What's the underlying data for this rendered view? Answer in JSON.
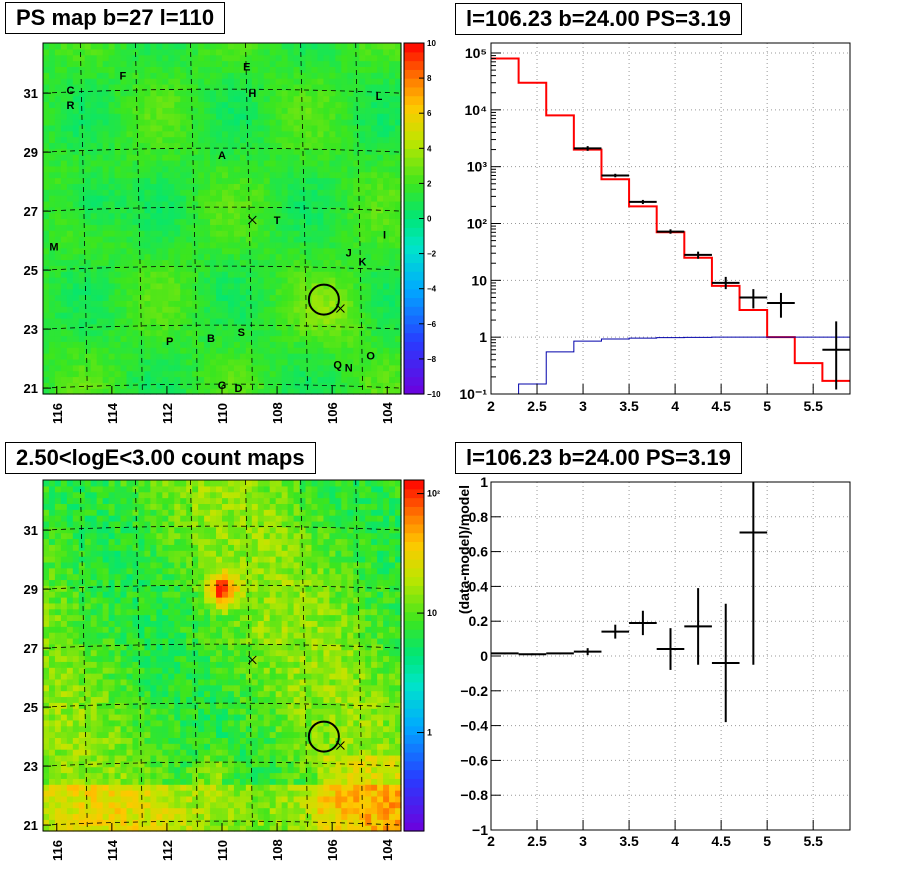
{
  "panels": {
    "ps_map": {
      "title": "PS map b=27 l=110",
      "x_ticks": [
        "116",
        "114",
        "112",
        "110",
        "108",
        "106",
        "104"
      ],
      "y_ticks": [
        "31",
        "29",
        "27",
        "25",
        "23",
        "21"
      ],
      "colorbar_ticks": [
        "10",
        "8",
        "6",
        "4",
        "2",
        "0",
        "−2",
        "−4",
        "−6",
        "−8",
        "−10"
      ],
      "source_labels": [
        "E",
        "F",
        "C",
        "H",
        "L",
        "R",
        "A",
        "T",
        "I",
        "M",
        "J",
        "K",
        "P",
        "B",
        "S",
        "O",
        "Q",
        "N",
        "G",
        "D"
      ]
    },
    "spectrum": {
      "title": "l=106.23 b=24.00 PS=3.19",
      "x_ticks": [
        "2",
        "2.5",
        "3",
        "3.5",
        "4",
        "4.5",
        "5",
        "5.5"
      ],
      "y_ticks": [
        "10⁵",
        "10⁴",
        "10³",
        "10²",
        "10",
        "1",
        "10⁻¹"
      ]
    },
    "count_map": {
      "title": "2.50<logE<3.00 count maps",
      "x_ticks": [
        "116",
        "114",
        "112",
        "110",
        "108",
        "106",
        "104"
      ],
      "y_ticks": [
        "31",
        "29",
        "27",
        "25",
        "23",
        "21"
      ],
      "colorbar_ticks": [
        "10²",
        "10",
        "1"
      ]
    },
    "residual": {
      "title": "l=106.23 b=24.00 PS=3.19",
      "ylabel": "(data-model)/model",
      "x_ticks": [
        "2",
        "2.5",
        "3",
        "3.5",
        "4",
        "4.5",
        "5",
        "5.5"
      ],
      "y_ticks": [
        "1",
        "0.8",
        "0.6",
        "0.4",
        "0.2",
        "0",
        "−0.2",
        "−0.4",
        "−0.6",
        "−0.8",
        "−1"
      ]
    }
  },
  "chart_data": [
    {
      "type": "heatmap",
      "title": "PS map b=27 l=110",
      "x_range": [
        116.5,
        103.5
      ],
      "y_range": [
        20.8,
        32.7
      ],
      "z_range": [
        -10,
        10
      ],
      "colorbar": "rainbow",
      "sources": [
        {
          "label": "E",
          "l": 109.1,
          "b": 31.9
        },
        {
          "label": "F",
          "l": 113.6,
          "b": 31.6
        },
        {
          "label": "C",
          "l": 115.5,
          "b": 31.1
        },
        {
          "label": "H",
          "l": 108.9,
          "b": 31.0
        },
        {
          "label": "L",
          "l": 104.3,
          "b": 30.9
        },
        {
          "label": "R",
          "l": 115.5,
          "b": 30.6
        },
        {
          "label": "A",
          "l": 110.0,
          "b": 28.9
        },
        {
          "label": "T",
          "l": 108.0,
          "b": 26.7
        },
        {
          "label": "I",
          "l": 104.1,
          "b": 26.2
        },
        {
          "label": "M",
          "l": 116.1,
          "b": 25.8
        },
        {
          "label": "J",
          "l": 105.4,
          "b": 25.6
        },
        {
          "label": "K",
          "l": 104.9,
          "b": 25.3
        },
        {
          "label": "P",
          "l": 111.9,
          "b": 22.6
        },
        {
          "label": "B",
          "l": 110.4,
          "b": 22.7
        },
        {
          "label": "S",
          "l": 109.3,
          "b": 22.9
        },
        {
          "label": "O",
          "l": 104.6,
          "b": 22.1
        },
        {
          "label": "Q",
          "l": 105.8,
          "b": 21.8
        },
        {
          "label": "N",
          "l": 105.4,
          "b": 21.7
        },
        {
          "label": "G",
          "l": 110.0,
          "b": 21.1
        },
        {
          "label": "D",
          "l": 109.4,
          "b": 21.0
        }
      ],
      "marker_circle": {
        "l": 106.3,
        "b": 24.0
      },
      "marker_cross": [
        {
          "l": 108.9,
          "b": 26.7
        },
        {
          "l": 105.7,
          "b": 23.7
        }
      ]
    },
    {
      "type": "line",
      "title": "l=106.23 b=24.00 PS=3.19",
      "x_range": [
        2,
        5.9
      ],
      "y_log": true,
      "y_range": [
        0.1,
        150000
      ],
      "bin_edges": [
        2,
        2.3,
        2.6,
        2.9,
        3.2,
        3.5,
        3.8,
        4.1,
        4.4,
        4.7,
        5.0,
        5.3,
        5.6,
        5.9
      ],
      "series": [
        {
          "color": "#ff0000",
          "values": [
            80000,
            30000,
            8000,
            2000,
            600,
            200,
            70,
            25,
            8,
            3,
            1,
            0.35,
            0.17
          ]
        },
        {
          "color": "#0000aa",
          "values": [
            0.1,
            0.15,
            0.55,
            0.85,
            0.93,
            0.96,
            0.98,
            0.99,
            1.0,
            1.0,
            1.0,
            1.0,
            1.0
          ]
        }
      ],
      "data_points": [
        {
          "x": 3.05,
          "y": 2100,
          "xerr": 0.15,
          "ylo": 1900,
          "yhi": 2300
        },
        {
          "x": 3.35,
          "y": 700,
          "xerr": 0.15,
          "ylo": 650,
          "yhi": 750
        },
        {
          "x": 3.65,
          "y": 240,
          "xerr": 0.15,
          "ylo": 220,
          "yhi": 260
        },
        {
          "x": 3.95,
          "y": 72,
          "xerr": 0.15,
          "ylo": 66,
          "yhi": 79
        },
        {
          "x": 4.25,
          "y": 28,
          "xerr": 0.15,
          "ylo": 24,
          "yhi": 32
        },
        {
          "x": 4.55,
          "y": 9,
          "xerr": 0.15,
          "ylo": 7,
          "yhi": 11.5
        },
        {
          "x": 4.85,
          "y": 5,
          "xerr": 0.15,
          "ylo": 3.2,
          "yhi": 7
        },
        {
          "x": 5.15,
          "y": 4,
          "xerr": 0.15,
          "ylo": 2.2,
          "yhi": 6
        },
        {
          "x": 5.75,
          "y": 0.6,
          "xerr": 0.15,
          "ylo": 0.12,
          "yhi": 1.9
        }
      ]
    },
    {
      "type": "heatmap",
      "title": "2.50<logE<3.00 count maps",
      "x_range": [
        116.5,
        103.5
      ],
      "y_range": [
        20.8,
        32.7
      ],
      "z_log": true,
      "z_range": [
        0.15,
        130
      ],
      "colorbar": "rainbow",
      "marker_circle": {
        "l": 106.3,
        "b": 24.0
      },
      "marker_cross": [
        {
          "l": 108.9,
          "b": 26.6
        },
        {
          "l": 105.7,
          "b": 23.7
        }
      ]
    },
    {
      "type": "scatter",
      "title": "l=106.23 b=24.00 PS=3.19",
      "ylabel": "(data-model)/model",
      "x_range": [
        2,
        5.9
      ],
      "y_range": [
        -1,
        1
      ],
      "grid": true,
      "points": [
        {
          "x": 2.15,
          "y": 0.015,
          "xerr": 0.15,
          "yerr": 0.005
        },
        {
          "x": 2.45,
          "y": 0.01,
          "xerr": 0.15,
          "yerr": 0.005
        },
        {
          "x": 2.75,
          "y": 0.015,
          "xerr": 0.15,
          "yerr": 0.005
        },
        {
          "x": 3.05,
          "y": 0.025,
          "xerr": 0.15,
          "yerr": 0.02
        },
        {
          "x": 3.35,
          "y": 0.14,
          "xerr": 0.15,
          "yerr": 0.04
        },
        {
          "x": 3.65,
          "y": 0.19,
          "xerr": 0.15,
          "yerr": 0.07
        },
        {
          "x": 3.95,
          "y": 0.04,
          "xerr": 0.15,
          "yerr": 0.12
        },
        {
          "x": 4.25,
          "y": 0.17,
          "xerr": 0.15,
          "yerr": 0.22
        },
        {
          "x": 4.55,
          "y": -0.04,
          "xerr": 0.15,
          "yerr": 0.34
        },
        {
          "x": 4.85,
          "y": 0.71,
          "xerr": 0.15,
          "yerr": 0.76
        }
      ]
    }
  ]
}
